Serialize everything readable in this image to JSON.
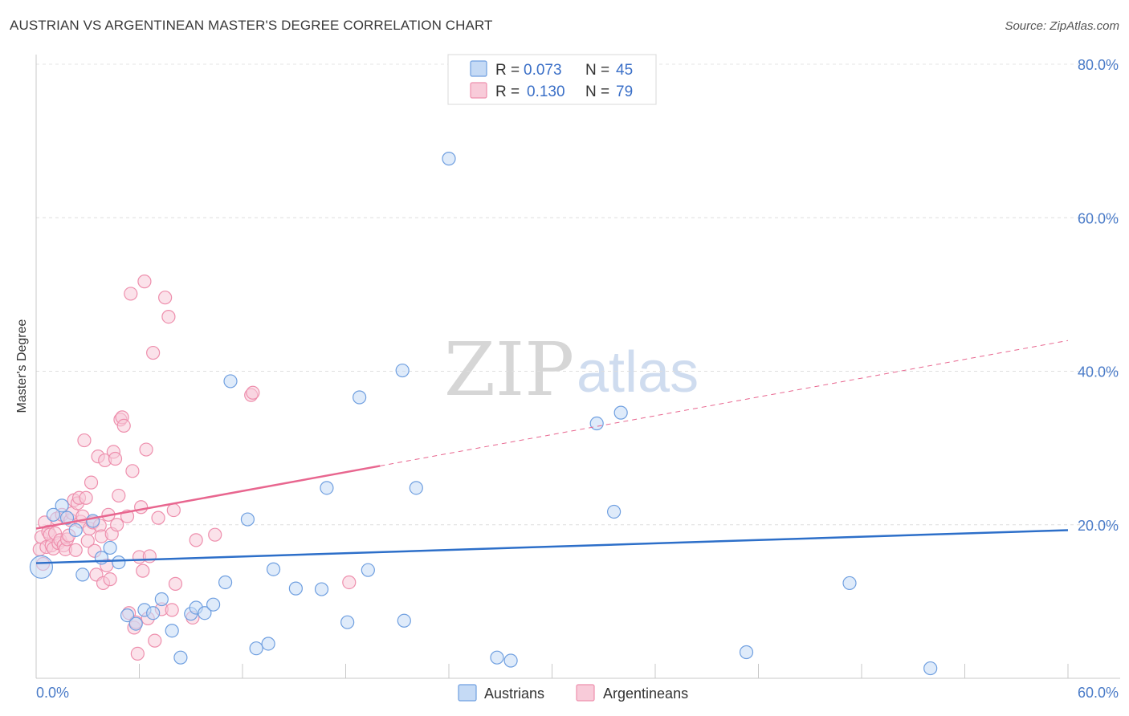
{
  "title": "AUSTRIAN VS ARGENTINEAN MASTER'S DEGREE CORRELATION CHART",
  "source": "Source: ZipAtlas.com",
  "watermark": {
    "zip": "ZIP",
    "atlas": "atlas"
  },
  "colors": {
    "austrians": "#6f9fe0",
    "austrians_fill": "#c5daf5",
    "argentineans": "#ee8fad",
    "argentineans_fill": "#f8cbd9",
    "austrians_line": "#2d6fc9",
    "argentineans_line": "#e8668f",
    "axis_text": "#4a7bc8"
  },
  "legend": {
    "r_label": "R =",
    "n_label": "N =",
    "austrians": {
      "r": "0.073",
      "n": "45"
    },
    "argentineans": {
      "r": "0.130",
      "n": "79"
    }
  },
  "chart_data": {
    "type": "scatter",
    "xlabel": "",
    "ylabel": "Master's Degree",
    "xlim": [
      0,
      60
    ],
    "ylim": [
      0,
      80
    ],
    "x_tick_labels": [
      "0.0%",
      "60.0%"
    ],
    "y_tick_labels": [
      "20.0%",
      "40.0%",
      "60.0%",
      "80.0%"
    ],
    "y_ticks": [
      20,
      40,
      60,
      80
    ],
    "x_minor_ticks": [
      0,
      6,
      12,
      18,
      24,
      30,
      36,
      42,
      48,
      54,
      60
    ],
    "series": [
      {
        "name": "Austrians",
        "trend": {
          "x0": 0,
          "y0": 15.0,
          "x1": 60,
          "y1": 19.3,
          "dashed_from": null
        },
        "points": [
          [
            0.3,
            14.5
          ],
          [
            1.0,
            21.3
          ],
          [
            1.5,
            22.5
          ],
          [
            1.8,
            20.9
          ],
          [
            2.3,
            19.3
          ],
          [
            2.7,
            13.5
          ],
          [
            3.3,
            20.5
          ],
          [
            3.8,
            15.7
          ],
          [
            4.3,
            17.0
          ],
          [
            4.8,
            15.1
          ],
          [
            5.3,
            8.2
          ],
          [
            5.8,
            7.1
          ],
          [
            6.3,
            8.9
          ],
          [
            6.8,
            8.5
          ],
          [
            7.3,
            10.3
          ],
          [
            7.9,
            6.2
          ],
          [
            8.4,
            2.7
          ],
          [
            9.0,
            8.4
          ],
          [
            9.3,
            9.2
          ],
          [
            9.8,
            8.5
          ],
          [
            10.3,
            9.6
          ],
          [
            11.0,
            12.5
          ],
          [
            11.3,
            38.7
          ],
          [
            12.3,
            20.7
          ],
          [
            12.8,
            3.9
          ],
          [
            13.5,
            4.5
          ],
          [
            13.8,
            14.2
          ],
          [
            15.1,
            11.7
          ],
          [
            16.6,
            11.6
          ],
          [
            16.9,
            24.8
          ],
          [
            18.1,
            7.3
          ],
          [
            18.8,
            36.6
          ],
          [
            19.3,
            14.1
          ],
          [
            21.3,
            40.1
          ],
          [
            21.4,
            7.5
          ],
          [
            22.1,
            24.8
          ],
          [
            24.0,
            67.7
          ],
          [
            26.8,
            2.7
          ],
          [
            27.6,
            2.3
          ],
          [
            32.6,
            33.2
          ],
          [
            33.6,
            21.7
          ],
          [
            34.0,
            34.6
          ],
          [
            41.3,
            3.4
          ],
          [
            47.3,
            12.4
          ],
          [
            52.0,
            1.3
          ]
        ]
      },
      {
        "name": "Argentineans",
        "trend": {
          "x0": 0,
          "y0": 19.5,
          "x1": 60,
          "y1": 44.0,
          "solid_until": 20
        },
        "points": [
          [
            0.2,
            16.8
          ],
          [
            0.3,
            18.4
          ],
          [
            0.4,
            14.9
          ],
          [
            0.5,
            20.3
          ],
          [
            0.6,
            17.1
          ],
          [
            0.7,
            19.1
          ],
          [
            0.8,
            18.7
          ],
          [
            0.9,
            17.3
          ],
          [
            1.0,
            16.9
          ],
          [
            1.1,
            18.9
          ],
          [
            1.2,
            20.8
          ],
          [
            1.3,
            17.6
          ],
          [
            1.4,
            18.0
          ],
          [
            1.5,
            21.3
          ],
          [
            1.6,
            17.3
          ],
          [
            1.7,
            16.8
          ],
          [
            1.8,
            18.1
          ],
          [
            1.9,
            18.6
          ],
          [
            2.0,
            20.6
          ],
          [
            2.1,
            21.5
          ],
          [
            2.2,
            23.2
          ],
          [
            2.3,
            16.7
          ],
          [
            2.4,
            22.8
          ],
          [
            2.5,
            23.5
          ],
          [
            2.6,
            20.4
          ],
          [
            2.7,
            21.1
          ],
          [
            2.8,
            31.0
          ],
          [
            2.9,
            23.5
          ],
          [
            3.0,
            17.9
          ],
          [
            3.1,
            19.5
          ],
          [
            3.2,
            25.5
          ],
          [
            3.3,
            20.3
          ],
          [
            3.4,
            16.6
          ],
          [
            3.5,
            13.5
          ],
          [
            3.6,
            28.9
          ],
          [
            3.7,
            19.9
          ],
          [
            3.8,
            18.5
          ],
          [
            3.9,
            12.4
          ],
          [
            4.0,
            28.4
          ],
          [
            4.1,
            14.7
          ],
          [
            4.2,
            21.3
          ],
          [
            4.3,
            12.9
          ],
          [
            4.4,
            18.8
          ],
          [
            4.5,
            29.5
          ],
          [
            4.6,
            28.6
          ],
          [
            4.7,
            20.0
          ],
          [
            4.8,
            23.8
          ],
          [
            4.9,
            33.7
          ],
          [
            5.0,
            34.0
          ],
          [
            5.1,
            32.9
          ],
          [
            5.3,
            21.1
          ],
          [
            5.4,
            8.5
          ],
          [
            5.5,
            50.1
          ],
          [
            5.6,
            27.0
          ],
          [
            5.7,
            6.6
          ],
          [
            5.8,
            7.3
          ],
          [
            5.9,
            3.2
          ],
          [
            6.0,
            15.8
          ],
          [
            6.1,
            22.3
          ],
          [
            6.2,
            14.0
          ],
          [
            6.3,
            51.7
          ],
          [
            6.4,
            29.8
          ],
          [
            6.5,
            7.8
          ],
          [
            6.6,
            15.9
          ],
          [
            6.8,
            42.4
          ],
          [
            6.9,
            4.9
          ],
          [
            7.1,
            20.9
          ],
          [
            7.3,
            9.0
          ],
          [
            7.5,
            49.6
          ],
          [
            7.7,
            47.1
          ],
          [
            7.9,
            8.9
          ],
          [
            8.0,
            21.9
          ],
          [
            8.1,
            12.3
          ],
          [
            9.1,
            7.9
          ],
          [
            9.3,
            18.0
          ],
          [
            10.4,
            18.7
          ],
          [
            12.5,
            36.9
          ],
          [
            12.6,
            37.2
          ],
          [
            18.2,
            12.5
          ]
        ]
      }
    ]
  }
}
